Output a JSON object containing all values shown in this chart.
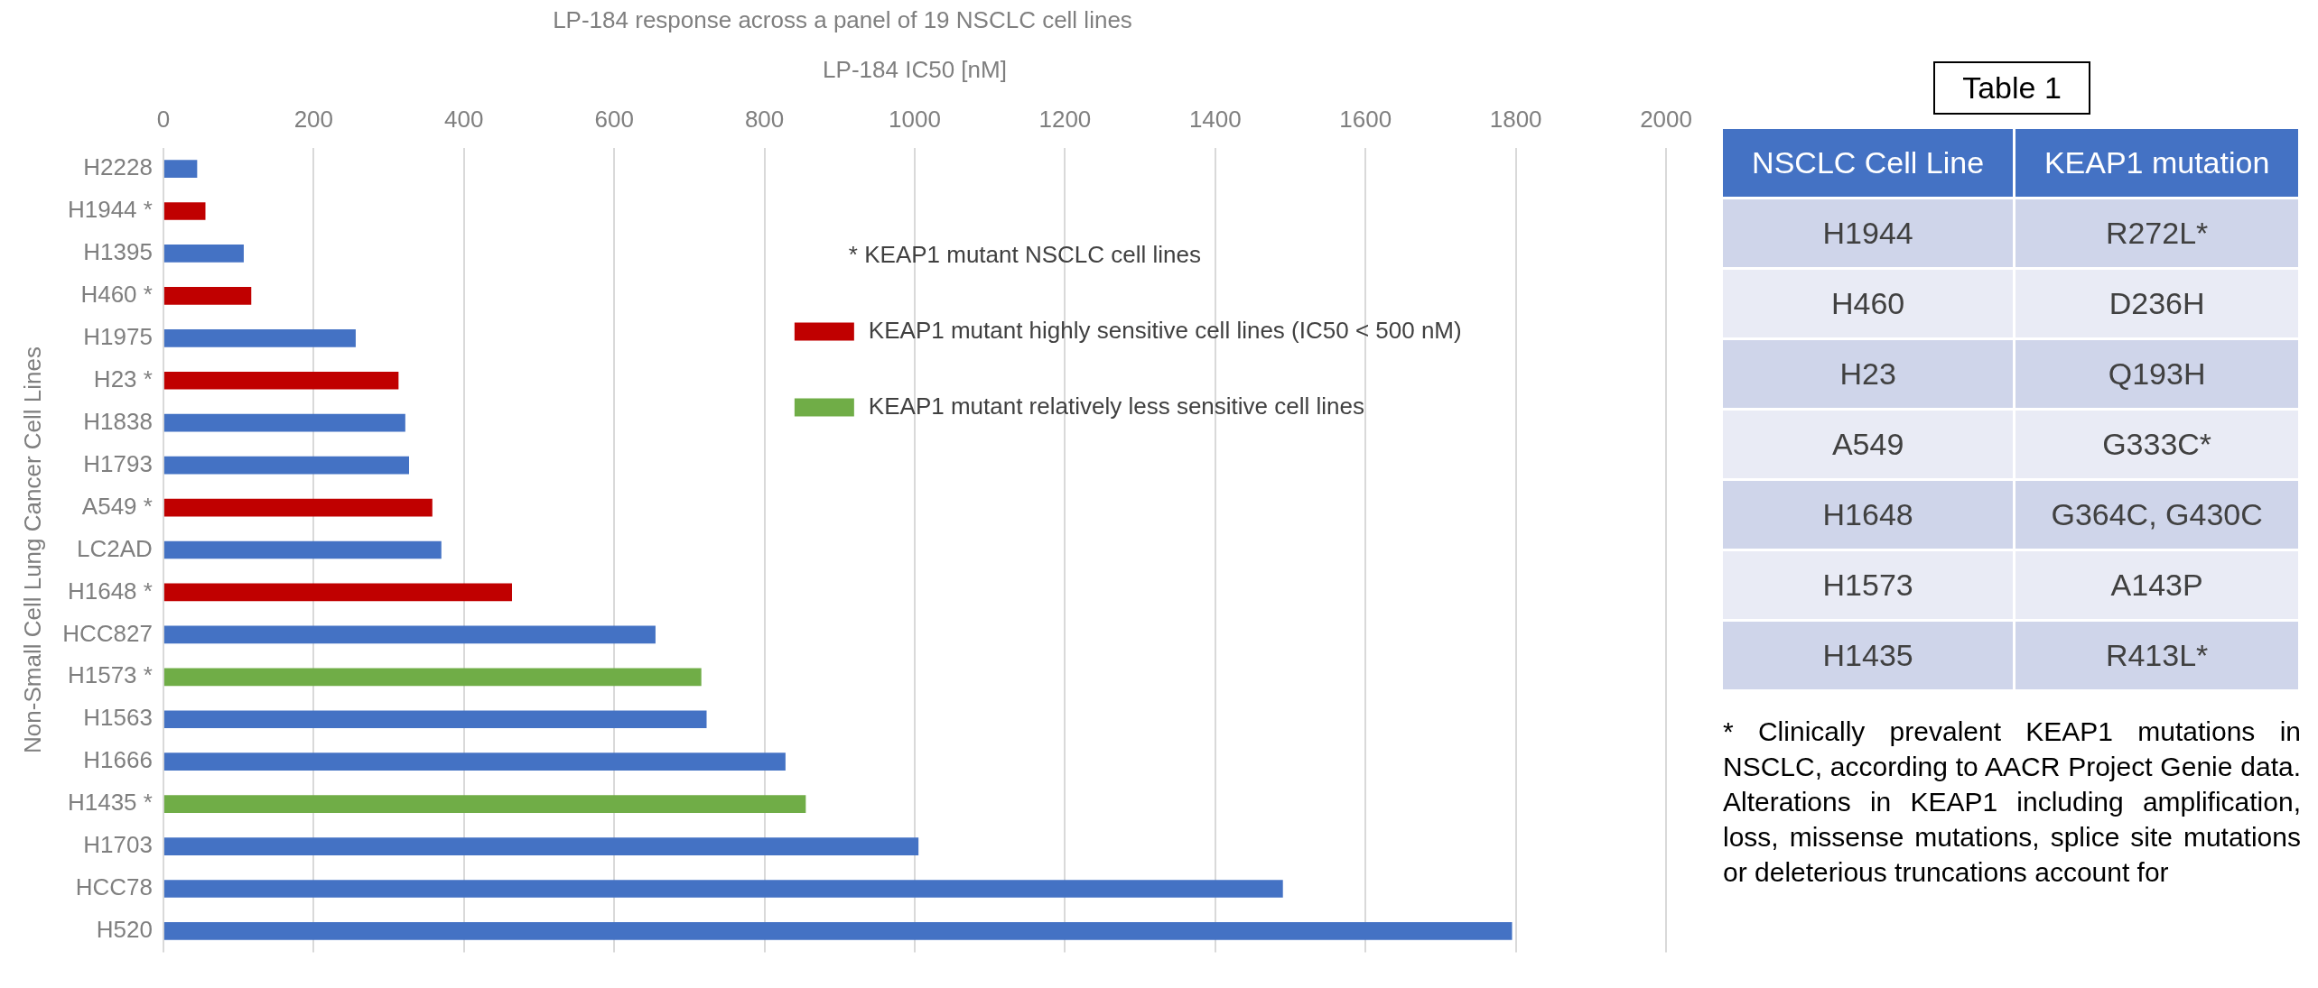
{
  "chart_data": [
    {
      "type": "bar",
      "orientation": "horizontal",
      "title": "LP-184 response across a panel of 19 NSCLC cell lines",
      "xlabel": "LP-184 IC50 [nM]",
      "ylabel": "Non-Small Cell Lung Cancer Cell Lines",
      "categories": [
        "H2228",
        "H1944 *",
        "H1395",
        "H460 *",
        "H1975",
        "H23 *",
        "H1838",
        "H1793",
        "A549 *",
        "LC2AD",
        "H1648 *",
        "HCC827",
        "H1573 *",
        "H1563",
        "H1666",
        "H1435 *",
        "H1703",
        "HCC78",
        "H520"
      ],
      "series": [
        {
          "color": "#4472c4",
          "values": [
            45,
            null,
            107,
            null,
            256,
            null,
            322,
            327,
            null,
            370,
            null,
            655,
            null,
            723,
            828,
            null,
            1005,
            1490,
            1795
          ]
        },
        {
          "name": "KEAP1 mutant highly sensitive cell lines (IC50 < 500 nM)",
          "color": "#c00000",
          "values": [
            null,
            56,
            null,
            117,
            null,
            313,
            null,
            null,
            358,
            null,
            464,
            null,
            null,
            null,
            null,
            null,
            null,
            null,
            null
          ]
        },
        {
          "name": "KEAP1 mutant relatively less sensitive cell lines",
          "color": "#70ad47",
          "values": [
            null,
            null,
            null,
            null,
            null,
            null,
            null,
            null,
            null,
            null,
            null,
            null,
            716,
            null,
            null,
            855,
            null,
            null,
            null
          ]
        }
      ],
      "annotations": [
        "* KEAP1 mutant NSCLC cell lines"
      ],
      "xlim": [
        0,
        2000
      ],
      "xticks": [
        0,
        200,
        400,
        600,
        800,
        1000,
        1200,
        1400,
        1600,
        1800,
        2000
      ],
      "grid": "x",
      "legend": "top right"
    },
    {
      "type": "other",
      "title": "Table 1",
      "categories": [
        "NSCLC Cell Line",
        "KEAP1 mutation"
      ],
      "cell_labels": [
        [
          "H1944",
          "R272L*"
        ],
        [
          "H460",
          "D236H"
        ],
        [
          "H23",
          "Q193H"
        ],
        [
          "A549",
          "G333C*"
        ],
        [
          "H1648",
          "G364C, G430C"
        ],
        [
          "H1573",
          "A143P"
        ],
        [
          "H1435",
          "R413L*"
        ]
      ],
      "annotations": [
        "* Clinically prevalent KEAP1 mutations in NSCLC, according to AACR Project Genie data. Alterations in KEAP1 including amplification, loss, missense mutations, splice site mutations or deleterious truncations account for"
      ]
    }
  ]
}
